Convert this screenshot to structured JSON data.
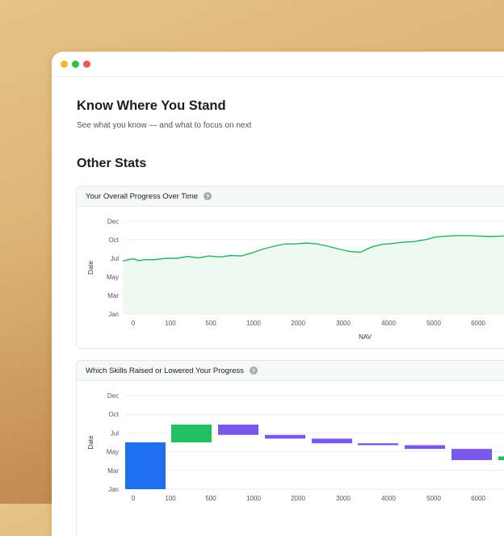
{
  "header": {
    "title": "Know Where You Stand",
    "subtitle": "See what you know — and what to focus on next"
  },
  "section_title": "Other Stats",
  "icons": {
    "help": "question-circle-icon"
  },
  "colors": {
    "line": "#22b45a",
    "fill": "#eaf7ee",
    "up": "#22c063",
    "down": "#7b57ec",
    "base": "#1f6ff0"
  },
  "chart1": {
    "title": "Your Overall Progress Over Time",
    "help_label": "?"
  },
  "chart2": {
    "title": "Which Skills Raised or Lowered Your Progress",
    "help_label": "?"
  },
  "chart_data": [
    {
      "type": "line",
      "title": "Your Overall Progress Over Time",
      "xlabel": "NAV",
      "ylabel": "Date",
      "x_ticks": [
        "0",
        "100",
        "500",
        "1000",
        "2000",
        "3000",
        "4000",
        "5000",
        "6000"
      ],
      "y_ticks": [
        "Jan",
        "Mar",
        "May",
        "Jul",
        "Oct",
        "Dec"
      ],
      "grid": true,
      "series": [
        {
          "x": [
            0,
            25,
            50,
            75,
            100,
            150,
            200,
            250,
            300,
            350,
            400,
            450,
            500,
            550,
            600,
            650,
            700,
            750,
            800,
            850,
            900,
            950,
            1000,
            1050,
            1100,
            1150,
            1200,
            1250,
            1300,
            1350,
            1400,
            1450,
            1500,
            1550,
            1600,
            1650,
            1700,
            1750,
            1800,
            1850,
            1900
          ],
          "y": [
            0.57,
            0.585,
            0.595,
            0.575,
            0.585,
            0.585,
            0.6,
            0.6,
            0.62,
            0.605,
            0.625,
            0.615,
            0.63,
            0.625,
            0.66,
            0.7,
            0.73,
            0.755,
            0.755,
            0.765,
            0.755,
            0.73,
            0.7,
            0.675,
            0.665,
            0.72,
            0.75,
            0.76,
            0.775,
            0.78,
            0.8,
            0.83,
            0.84,
            0.845,
            0.845,
            0.84,
            0.835,
            0.84,
            0.84,
            0.84,
            0.835
          ]
        }
      ]
    },
    {
      "type": "bar",
      "subtype": "waterfall",
      "title": "Which Skills Raised or Lowered Your Progress",
      "xlabel": "",
      "ylabel": "Date",
      "x_ticks": [
        "0",
        "100",
        "500",
        "1000",
        "2000",
        "3000",
        "4000",
        "5000",
        "6000"
      ],
      "y_ticks": [
        "Jan",
        "Mar",
        "May",
        "Jul",
        "Oct",
        "Dec"
      ],
      "bars": [
        {
          "start": 0,
          "end": 2.5
        },
        {
          "start": 2.5,
          "end": 3.45
        },
        {
          "start": 3.45,
          "end": 2.9
        },
        {
          "start": 2.9,
          "end": 2.7
        },
        {
          "start": 2.7,
          "end": 2.45
        },
        {
          "start": 2.45,
          "end": 2.35
        },
        {
          "start": 2.35,
          "end": 2.15
        },
        {
          "start": 2.15,
          "end": 1.55
        },
        {
          "start": 1.55,
          "end": 1.75
        }
      ]
    }
  ]
}
